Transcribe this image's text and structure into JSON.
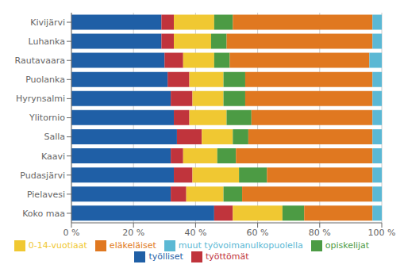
{
  "chart_data": {
    "type": "bar",
    "orientation": "horizontal",
    "stacked": true,
    "grid": true,
    "legend": "bottom",
    "categories": [
      "Kivijärvi",
      "Luhanka",
      "Rautavaara",
      "Puolanka",
      "Hyrynsalmi",
      "Ylitornio",
      "Salla",
      "Kaavi",
      "Pudasjärvi",
      "Pielavesi",
      "Koko maa"
    ],
    "series": [
      {
        "name": "työlliset",
        "color": "#1F5FA6",
        "values": [
          29,
          29,
          30,
          31,
          32,
          33,
          34,
          32,
          33,
          32,
          46
        ]
      },
      {
        "name": "työttömät",
        "color": "#C0343C",
        "values": [
          4,
          4,
          6,
          7,
          7,
          5,
          8,
          4,
          6,
          5,
          6
        ]
      },
      {
        "name": "0-14-vuotiaat",
        "color": "#F0C832",
        "values": [
          13,
          12,
          10,
          11,
          10,
          12,
          10,
          11,
          15,
          12,
          16
        ]
      },
      {
        "name": "opiskelijat",
        "color": "#4C9B44",
        "values": [
          6,
          5,
          5,
          7,
          7,
          8,
          5,
          6,
          9,
          6,
          7
        ]
      },
      {
        "name": "eläkeläiset",
        "color": "#E07820",
        "values": [
          45,
          47,
          45,
          41,
          41,
          39,
          40,
          44,
          34,
          42,
          22
        ]
      },
      {
        "name": "muut työvoimanulkopuolella",
        "color": "#5BB8D4",
        "values": [
          3,
          3,
          4,
          3,
          3,
          3,
          3,
          3,
          3,
          3,
          3
        ]
      }
    ],
    "xlim": [
      0,
      100
    ],
    "xticks": [
      {
        "value": 0,
        "label": "0 %"
      },
      {
        "value": 20,
        "label": "20 %"
      },
      {
        "value": 40,
        "label": "40 %"
      },
      {
        "value": 60,
        "label": "60 %"
      },
      {
        "value": 80,
        "label": "80 %"
      },
      {
        "value": 100,
        "label": "100 %"
      }
    ]
  }
}
